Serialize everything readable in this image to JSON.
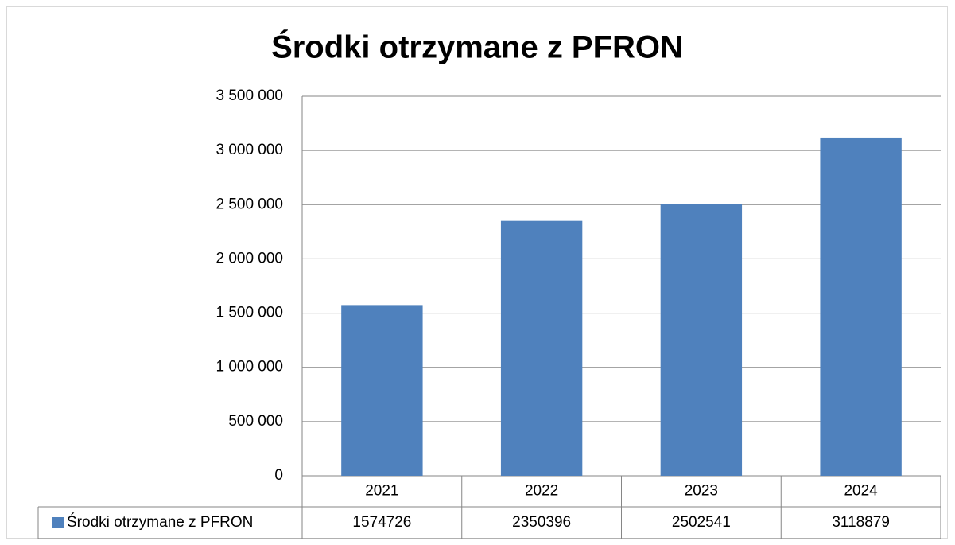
{
  "chart_data": {
    "type": "bar",
    "title": "Środki otrzymane z PFRON",
    "categories": [
      "2021",
      "2022",
      "2023",
      "2024"
    ],
    "series": [
      {
        "name": "Środki otrzymane z PFRON",
        "color": "#4f81bd",
        "values": [
          1574726,
          2350396,
          2502541,
          3118879
        ]
      }
    ],
    "ylim": [
      0,
      3500000
    ],
    "yticks": [
      0,
      {
        "value": 500000,
        "label": "500 000"
      },
      {
        "value": 1000000,
        "label": "1 000 000"
      },
      {
        "value": 1500000,
        "label": "1 500 000"
      },
      {
        "value": 2000000,
        "label": "2 000 000"
      },
      {
        "value": 2500000,
        "label": "2 500 000"
      },
      {
        "value": 3000000,
        "label": "3 000 000"
      },
      {
        "value": 3500000,
        "label": "3 500 000"
      }
    ],
    "grid": true
  }
}
